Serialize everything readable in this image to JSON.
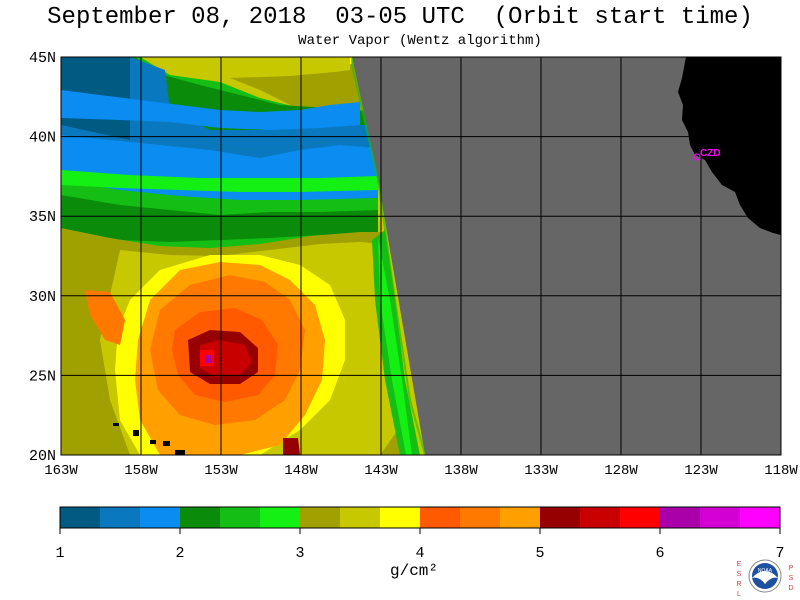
{
  "title": "September 08, 2018  03-05 UTC  (Orbit start time)",
  "subtitle": "Water Vapor (Wentz algorithm)",
  "map": {
    "lat_labels": [
      "45N",
      "40N",
      "35N",
      "30N",
      "25N",
      "20N"
    ],
    "lon_labels": [
      "163W",
      "158W",
      "153W",
      "148W",
      "143W",
      "138W",
      "133W",
      "128W",
      "123W",
      "118W"
    ],
    "station_label": "CZD",
    "colors": {
      "nodata": "#666666",
      "land": "#000000",
      "grid": "#000000",
      "station": "#ff00ff"
    }
  },
  "colorbar": {
    "ticks": [
      "1",
      "2",
      "3",
      "4",
      "5",
      "6",
      "7"
    ],
    "unit_label": "g/cm²",
    "colors": [
      "#005a82",
      "#0a78be",
      "#0a8cf0",
      "#0a8c0a",
      "#14be14",
      "#14f014",
      "#a0a000",
      "#c8c800",
      "#ffff00",
      "#ff5a00",
      "#ff7800",
      "#ffa000",
      "#960000",
      "#c80000",
      "#ff0000",
      "#aa00aa",
      "#d200d2",
      "#ff00ff"
    ]
  },
  "logo": {
    "left_letters": [
      "E",
      "S",
      "R",
      "L"
    ],
    "right_letters": [
      "P",
      "S",
      "D"
    ],
    "text": "NOAA"
  }
}
